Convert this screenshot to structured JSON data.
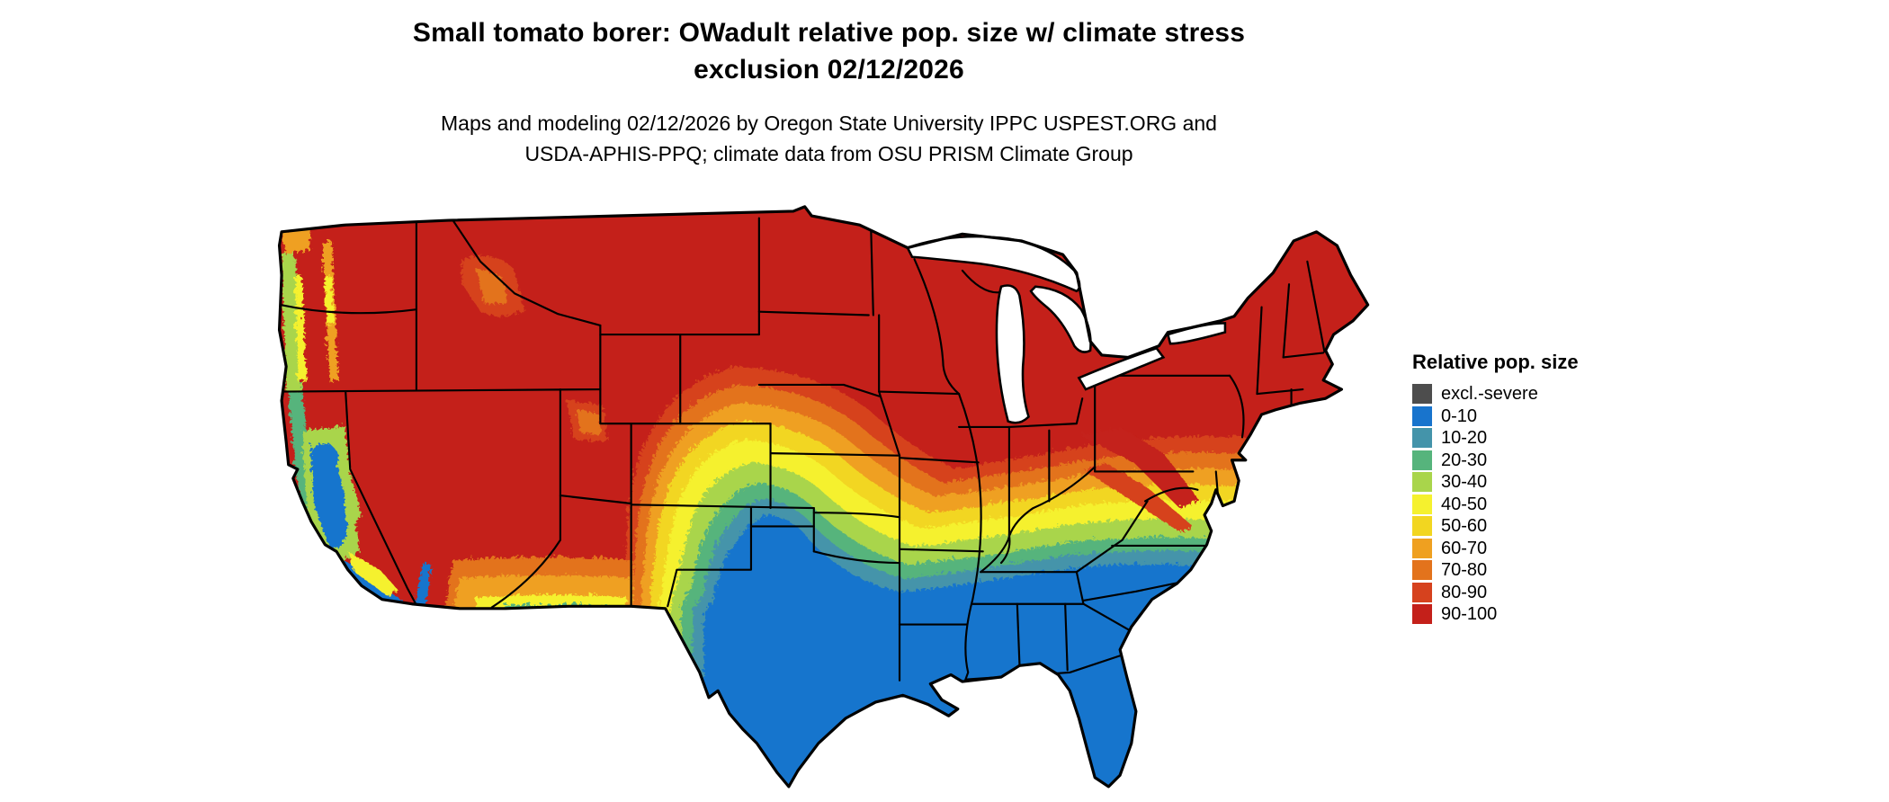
{
  "title": {
    "line1": "Small tomato borer: OWadult relative pop. size w/ climate stress",
    "line2": "exclusion 02/12/2026"
  },
  "subtitle": {
    "line1": "Maps and modeling 02/12/2026 by Oregon State University IPPC USPEST.ORG and",
    "line2": "USDA-APHIS-PPQ; climate data from OSU PRISM Climate Group"
  },
  "legend": {
    "title": "Relative pop. size",
    "items": [
      {
        "label": "excl.-severe",
        "color": "#4d4d4d"
      },
      {
        "label": "0-10",
        "color": "#1874cd"
      },
      {
        "label": "10-20",
        "color": "#4494aa"
      },
      {
        "label": "20-30",
        "color": "#56b47c"
      },
      {
        "label": "30-40",
        "color": "#a9d54b"
      },
      {
        "label": "40-50",
        "color": "#f5f12e"
      },
      {
        "label": "50-60",
        "color": "#f2d620"
      },
      {
        "label": "60-70",
        "color": "#efa020"
      },
      {
        "label": "70-80",
        "color": "#e3731c"
      },
      {
        "label": "80-90",
        "color": "#d6421e"
      },
      {
        "label": "90-100",
        "color": "#c4201a"
      }
    ]
  }
}
